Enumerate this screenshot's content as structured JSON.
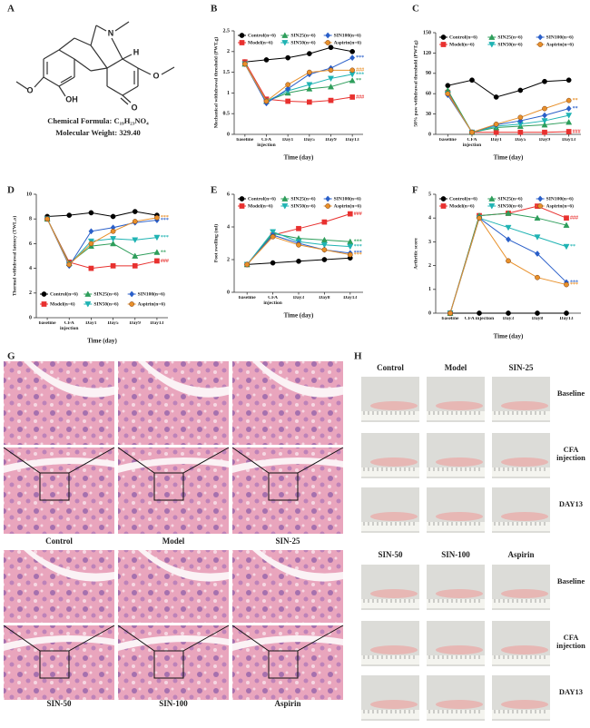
{
  "panel_a": {
    "panel_label": "A",
    "atoms": [
      "N",
      "H",
      "O",
      "OH",
      "O",
      "O"
    ],
    "formula": "Chemical Formula: C₁₉H₂₃NO₄",
    "weight": "Molecular Weight: 329.40"
  },
  "chart_data": [
    {
      "type": "line",
      "panel_label": "B",
      "y_label": "Mechanical withdrawal threshold (PWT,g)",
      "x_label": "Time (day)",
      "legend": "top",
      "categories": [
        "baseline",
        "CFA injection",
        "Day1",
        "Day5",
        "Day9",
        "Day13"
      ],
      "ylim": [
        0,
        2.5
      ],
      "yticks": [
        0,
        0.5,
        1,
        1.5,
        2,
        2.5
      ],
      "series": [
        {
          "name": "Control(n=6)",
          "color": "#000000",
          "marker": "circle",
          "values": [
            1.75,
            1.8,
            1.85,
            1.95,
            2.1,
            2.0
          ]
        },
        {
          "name": "Model(n=6)",
          "color": "#e8312f",
          "marker": "square",
          "values": [
            1.75,
            0.85,
            0.8,
            0.78,
            0.82,
            0.9
          ],
          "significance": "###"
        },
        {
          "name": "SIN25(n=6)",
          "color": "#2e9e5b",
          "marker": "triangle",
          "values": [
            1.7,
            0.8,
            1.0,
            1.1,
            1.15,
            1.3
          ],
          "significance": "**"
        },
        {
          "name": "SIN50(n=6)",
          "color": "#1fb3b3",
          "marker": "triangle-down",
          "values": [
            1.7,
            0.8,
            1.05,
            1.2,
            1.35,
            1.45
          ],
          "significance": "***"
        },
        {
          "name": "SIN100(n=6)",
          "color": "#2a5fc9",
          "marker": "diamond",
          "values": [
            1.7,
            0.75,
            1.1,
            1.45,
            1.6,
            1.85
          ],
          "significance": "***"
        },
        {
          "name": "Aspirin(n=6)",
          "color": "#e8902a",
          "marker": "circle",
          "values": [
            1.7,
            0.8,
            1.2,
            1.5,
            1.55,
            1.55
          ],
          "significance": "###"
        }
      ]
    },
    {
      "type": "line",
      "panel_label": "C",
      "y_label": "50% paw withdrawal threshold (PWT,g)",
      "x_label": "Time (day)",
      "legend": "top",
      "categories": [
        "baseline",
        "CFA injection",
        "Day1",
        "Day5",
        "Day9",
        "Day13"
      ],
      "ylim": [
        0,
        150
      ],
      "yticks": [
        0,
        30,
        60,
        90,
        120,
        150
      ],
      "series": [
        {
          "name": "Control(n=6)",
          "color": "#000000",
          "marker": "circle",
          "values": [
            72,
            80,
            55,
            65,
            78,
            80
          ]
        },
        {
          "name": "Model(n=6)",
          "color": "#e8312f",
          "marker": "square",
          "values": [
            62,
            3,
            3,
            3,
            3,
            4
          ],
          "significance": "###"
        },
        {
          "name": "SIN25(n=6)",
          "color": "#2e9e5b",
          "marker": "triangle",
          "values": [
            65,
            3,
            10,
            12,
            14,
            18
          ]
        },
        {
          "name": "SIN50(n=6)",
          "color": "#1fb3b3",
          "marker": "triangle-down",
          "values": [
            60,
            3,
            12,
            15,
            20,
            28
          ]
        },
        {
          "name": "SIN100(n=6)",
          "color": "#2a5fc9",
          "marker": "diamond",
          "values": [
            58,
            3,
            14,
            20,
            28,
            38
          ],
          "significance": "**"
        },
        {
          "name": "Aspirin(n=6)",
          "color": "#e8902a",
          "marker": "circle",
          "values": [
            60,
            3,
            15,
            25,
            38,
            50
          ],
          "significance": "**"
        }
      ]
    },
    {
      "type": "line",
      "panel_label": "D",
      "y_label": "Thermal withdrawal latency (TWL,s)",
      "x_label": "Time (day)",
      "legend": "bottom",
      "categories": [
        "baseline",
        "CFA injection",
        "Day1",
        "Day5",
        "Day9",
        "Day13"
      ],
      "ylim": [
        0,
        10
      ],
      "yticks": [
        0,
        2,
        4,
        6,
        8,
        10
      ],
      "series": [
        {
          "name": "Control(n=6)",
          "color": "#000000",
          "marker": "circle",
          "values": [
            8.2,
            8.3,
            8.5,
            8.2,
            8.6,
            8.3
          ]
        },
        {
          "name": "Model(n=6)",
          "color": "#e8312f",
          "marker": "square",
          "values": [
            8.0,
            4.5,
            4.0,
            4.2,
            4.2,
            4.6
          ],
          "significance": "###"
        },
        {
          "name": "SIN25(n=6)",
          "color": "#2e9e5b",
          "marker": "triangle",
          "values": [
            8.0,
            4.4,
            5.8,
            6.0,
            5.0,
            5.3
          ],
          "significance": "**"
        },
        {
          "name": "SIN50(n=6)",
          "color": "#1fb3b3",
          "marker": "triangle-down",
          "values": [
            8.0,
            4.3,
            6.2,
            6.4,
            6.3,
            6.5
          ],
          "significance": "***"
        },
        {
          "name": "SIN100(n=6)",
          "color": "#2a5fc9",
          "marker": "diamond",
          "values": [
            8.0,
            4.2,
            7.0,
            7.3,
            7.7,
            7.9
          ],
          "significance": "***"
        },
        {
          "name": "Aspirin(n=6)",
          "color": "#e8902a",
          "marker": "circle",
          "values": [
            8.0,
            4.3,
            6.0,
            7.0,
            7.8,
            8.1
          ],
          "significance": "***"
        }
      ]
    },
    {
      "type": "line",
      "panel_label": "E",
      "y_label": "Foot swelling (ml)",
      "x_label": "Time (day)",
      "legend": "top",
      "categories": [
        "baseline",
        "CFA injection",
        "Day3",
        "Day8",
        "Day13"
      ],
      "ylim": [
        0,
        6
      ],
      "yticks": [
        0,
        2,
        4,
        6
      ],
      "series": [
        {
          "name": "Control(n=6)",
          "color": "#000000",
          "marker": "circle",
          "values": [
            1.7,
            1.8,
            1.9,
            2.0,
            2.1
          ]
        },
        {
          "name": "Model(n=6)",
          "color": "#e8312f",
          "marker": "square",
          "values": [
            1.7,
            3.5,
            3.9,
            4.3,
            4.8
          ],
          "significance": "###"
        },
        {
          "name": "SIN25(n=6)",
          "color": "#2e9e5b",
          "marker": "triangle",
          "values": [
            1.7,
            3.6,
            3.3,
            3.2,
            3.1
          ],
          "significance": "***"
        },
        {
          "name": "SIN50(n=6)",
          "color": "#1fb3b3",
          "marker": "triangle-down",
          "values": [
            1.7,
            3.7,
            3.1,
            2.9,
            2.8
          ],
          "significance": "***"
        },
        {
          "name": "SIN100(n=6)",
          "color": "#2a5fc9",
          "marker": "diamond",
          "values": [
            1.7,
            3.5,
            3.0,
            2.6,
            2.4
          ],
          "significance": "***"
        },
        {
          "name": "Aspirin(n=6)",
          "color": "#e8902a",
          "marker": "circle",
          "values": [
            1.7,
            3.4,
            2.9,
            2.6,
            2.3
          ],
          "significance": "***"
        }
      ]
    },
    {
      "type": "line",
      "panel_label": "F",
      "y_label": "Arthritic score",
      "x_label": "Time (day)",
      "legend": "top",
      "categories": [
        "baseline",
        "CFA injection",
        "Day3",
        "Day8",
        "Day13"
      ],
      "ylim": [
        0,
        5
      ],
      "yticks": [
        0,
        1,
        2,
        3,
        4,
        5
      ],
      "series": [
        {
          "name": "Control(n=6)",
          "color": "#000000",
          "marker": "circle",
          "values": [
            0,
            0,
            0,
            0,
            0
          ]
        },
        {
          "name": "Model(n=6)",
          "color": "#e8312f",
          "marker": "square",
          "values": [
            0,
            4.1,
            4.2,
            4.5,
            4.0
          ],
          "significance": "###"
        },
        {
          "name": "SIN25(n=6)",
          "color": "#2e9e5b",
          "marker": "triangle",
          "values": [
            0,
            4.1,
            4.2,
            4.0,
            3.7
          ]
        },
        {
          "name": "SIN50(n=6)",
          "color": "#1fb3b3",
          "marker": "triangle-down",
          "values": [
            0,
            4.0,
            3.6,
            3.2,
            2.8
          ],
          "significance": "**"
        },
        {
          "name": "SIN100(n=6)",
          "color": "#2a5fc9",
          "marker": "diamond",
          "values": [
            0,
            4.0,
            3.1,
            2.5,
            1.3
          ],
          "significance": "***"
        },
        {
          "name": "Aspirin(n=6)",
          "color": "#e8902a",
          "marker": "circle",
          "values": [
            0,
            4.0,
            2.2,
            1.5,
            1.2
          ],
          "significance": "***"
        }
      ]
    }
  ],
  "panel_g": {
    "panel_label": "G",
    "images": [
      "Control",
      "Model",
      "SIN-25",
      "SIN-50",
      "SIN-100",
      "Aspirin"
    ]
  },
  "panel_h": {
    "panel_label": "H",
    "groups": [
      {
        "columns": [
          "Control",
          "Model",
          "SIN-25"
        ],
        "rows": [
          "Baseline",
          "CFA injection",
          "DAY13"
        ]
      },
      {
        "columns": [
          "SIN-50",
          "SIN-100",
          "Aspirin"
        ],
        "rows": [
          "Baseline",
          "CFA injection",
          "DAY13"
        ]
      }
    ]
  }
}
